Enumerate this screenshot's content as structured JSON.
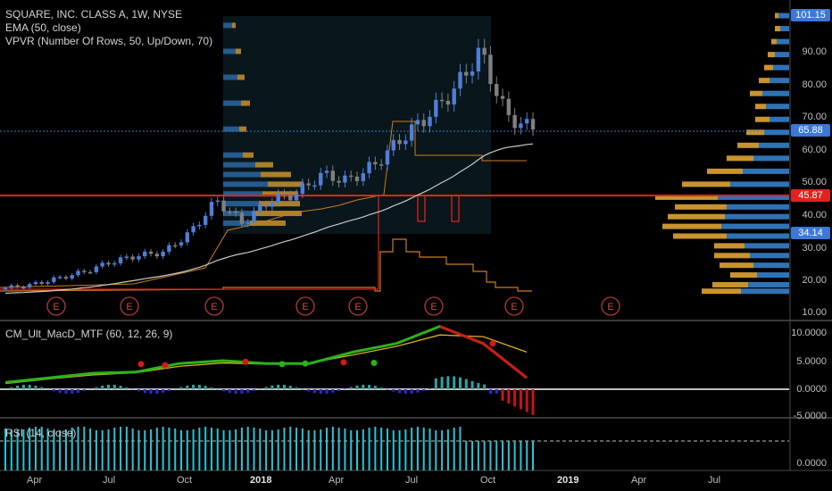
{
  "legend": {
    "symbol": "SQUARE, INC. CLASS A, 1W, NYSE",
    "ema": "EMA (50, close)",
    "vpvr": "VPVR (Number Of Rows, 50, Up/Down, 70)",
    "macd": "CM_Ult_MacD_MTF (60, 12, 26, 9)",
    "rsi": "RSI (14, close)"
  },
  "price_axis": {
    "ticks": [
      "90.00",
      "80.00",
      "70.00",
      "60.00",
      "50.00",
      "40.00",
      "30.00",
      "20.00",
      "10.00"
    ],
    "badges": {
      "high": "101.15",
      "last": "65.88",
      "red": "45.87",
      "low": "34.14"
    }
  },
  "macd_axis": {
    "ticks": [
      "10.0000",
      "5.0000",
      "0.0000",
      "-5.0000"
    ]
  },
  "rsi_axis": {
    "ticks": [
      "0.0000"
    ]
  },
  "time_axis": {
    "labels": [
      "Apr",
      "Jul",
      "Oct",
      "2018",
      "Apr",
      "Jul",
      "Oct",
      "2019",
      "Apr",
      "Jul"
    ]
  },
  "earnings_markers": {
    "label": "E"
  },
  "colors": {
    "up": "#4f7fd8",
    "down": "#7f7f7f",
    "ema": "#bfbfbf",
    "vpvr_up": "#2f73b6",
    "vpvr_down": "#c9932e",
    "red_line": "#e0231c",
    "last_price": "#3b78d8",
    "macd_line": "#2bb21b",
    "signal_line": "#d8b21c",
    "hist_pos": "#30a3a3",
    "rsi": "#29c4d6"
  },
  "chart_data": [
    {
      "type": "candlestick",
      "title": "SQUARE, INC. CLASS A, 1W, NYSE",
      "ylim": [
        10,
        101.15
      ],
      "x_period": "weekly, Mar 2017 – Nov 2018",
      "close_by_month": {
        "x": [
          "2017-03",
          "2017-04",
          "2017-05",
          "2017-06",
          "2017-07",
          "2017-08",
          "2017-09",
          "2017-10",
          "2017-11",
          "2017-12",
          "2018-01",
          "2018-02",
          "2018-03",
          "2018-04",
          "2018-05",
          "2018-06",
          "2018-07",
          "2018-08",
          "2018-09",
          "2018-10",
          "2018-11"
        ],
        "close": [
          17,
          18,
          20,
          22,
          25,
          27,
          28,
          34,
          44,
          37,
          44,
          46,
          52,
          50,
          55,
          63,
          70,
          78,
          90,
          70,
          65.88
        ]
      },
      "series": [
        {
          "name": "EMA (50, close)"
        }
      ],
      "last_price": 65.88,
      "highest": 101.15,
      "horizontal_line": 45.87,
      "price_marker": 34.14
    },
    {
      "type": "line",
      "title": "CM_Ult_MacD_MTF (60, 12, 26, 9)",
      "ylim": [
        -6,
        12
      ],
      "x": [
        "2017-03",
        "2017-05",
        "2017-07",
        "2017-09",
        "2017-11",
        "2018-01",
        "2018-03",
        "2018-05",
        "2018-07",
        "2018-08",
        "2018-09",
        "2018-10",
        "2018-11"
      ],
      "macd": [
        1.2,
        2,
        2.8,
        3,
        4.5,
        5,
        4.5,
        4.5,
        6.5,
        8,
        11,
        8,
        2
      ],
      "signal": [
        1,
        1.8,
        2.5,
        2.9,
        4,
        4.6,
        4.4,
        4.6,
        6,
        7.5,
        9.5,
        9.2,
        6.5
      ]
    },
    {
      "type": "bar",
      "title": "RSI (14, close)"
    }
  ]
}
